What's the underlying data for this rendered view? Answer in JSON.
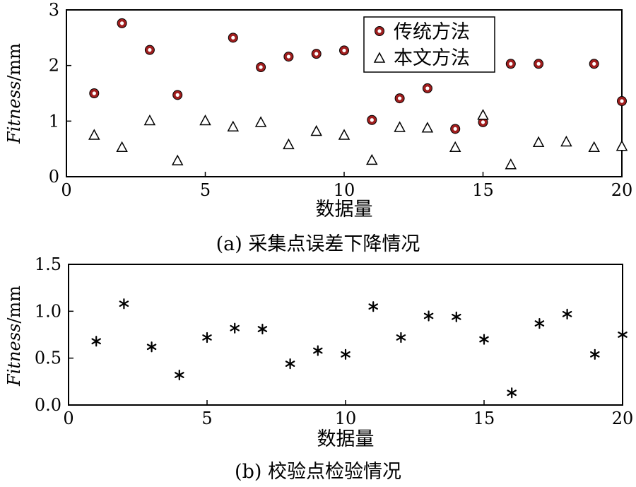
{
  "chart_data": [
    {
      "type": "scatter",
      "caption": "(a) 采集点误差下降情况",
      "xlabel": "数据量",
      "ylabel_italic": "Fitness",
      "ylabel_unit": "/mm",
      "xlim": [
        0,
        20
      ],
      "ylim": [
        0,
        3
      ],
      "xticks": [
        0,
        5,
        10,
        15,
        20
      ],
      "yticks": [
        0,
        1,
        2,
        3
      ],
      "xtick_labels": [
        "0",
        "5",
        "10",
        "15",
        "20"
      ],
      "ytick_labels": [
        "0",
        "1",
        "2",
        "3"
      ],
      "grid": false,
      "legend_position": "top-right",
      "series": [
        {
          "name": "传统方法",
          "marker": "circle",
          "color": "#a01e1e",
          "x": [
            1,
            2,
            3,
            4,
            6,
            7,
            8,
            9,
            10,
            11,
            12,
            13,
            14,
            15,
            16,
            17,
            19,
            20
          ],
          "y": [
            1.5,
            2.76,
            2.28,
            1.47,
            2.5,
            1.97,
            2.16,
            2.21,
            2.27,
            1.02,
            1.41,
            1.59,
            0.86,
            0.98,
            2.03,
            2.03,
            2.03,
            1.36
          ]
        },
        {
          "name": "本文方法",
          "marker": "triangle",
          "color": "#000000",
          "x": [
            1,
            2,
            3,
            4,
            5,
            6,
            7,
            8,
            9,
            10,
            11,
            12,
            13,
            14,
            15,
            16,
            17,
            18,
            19,
            20
          ],
          "y": [
            0.75,
            0.53,
            1.01,
            0.29,
            1.01,
            0.9,
            0.98,
            0.58,
            0.82,
            0.75,
            0.3,
            0.89,
            0.88,
            0.53,
            1.11,
            0.22,
            0.62,
            0.63,
            0.53,
            0.55
          ]
        }
      ]
    },
    {
      "type": "scatter",
      "caption": "(b) 校验点检验情况",
      "xlabel": "数据量",
      "ylabel_italic": "Fitness",
      "ylabel_unit": "/mm",
      "xlim": [
        0,
        20
      ],
      "ylim": [
        0,
        1.5
      ],
      "xticks": [
        0,
        5,
        10,
        15,
        20
      ],
      "yticks": [
        0,
        0.5,
        1.0,
        1.5
      ],
      "xtick_labels": [
        "0",
        "5",
        "10",
        "15",
        "20"
      ],
      "ytick_labels": [
        "0.0",
        "0.5",
        "1.0",
        "1.5"
      ],
      "grid": false,
      "series": [
        {
          "marker": "asterisk",
          "color": "#000000",
          "x": [
            1,
            2,
            3,
            4,
            5,
            6,
            7,
            8,
            9,
            10,
            11,
            12,
            13,
            14,
            15,
            16,
            17,
            18,
            19,
            20
          ],
          "y": [
            0.68,
            1.08,
            0.62,
            0.32,
            0.72,
            0.82,
            0.81,
            0.44,
            0.58,
            0.54,
            1.05,
            0.72,
            0.95,
            0.94,
            0.7,
            0.13,
            0.87,
            0.97,
            0.54,
            0.75
          ]
        }
      ]
    }
  ]
}
